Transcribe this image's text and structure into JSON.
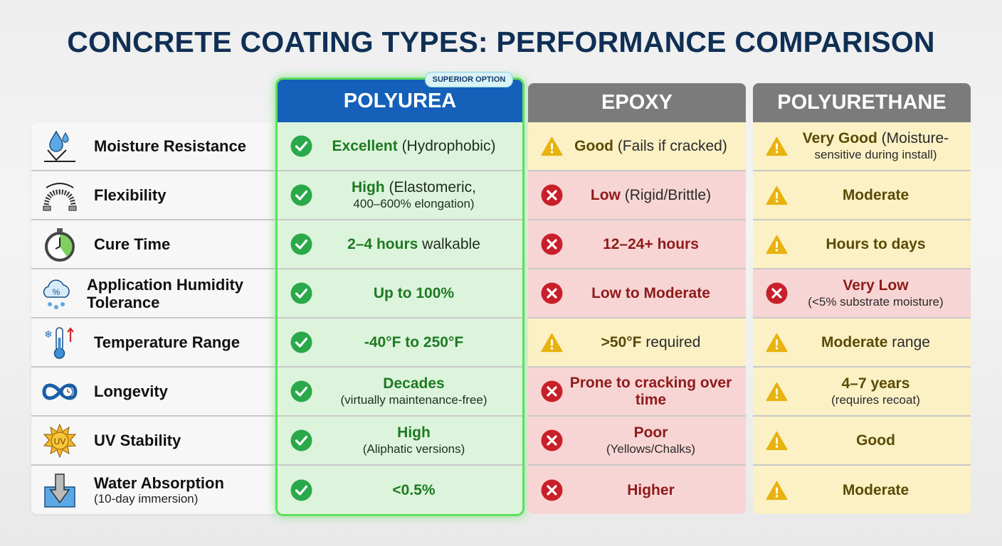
{
  "title": "CONCRETE COATING TYPES: PERFORMANCE COMPARISON",
  "badge": "SUPERIOR OPTION",
  "colors": {
    "polyurea_header": "#1560b8",
    "other_header": "#7b7b7b",
    "good": "#2aa84a",
    "warn": "#e8b20f",
    "bad": "#c8202a"
  },
  "criteria": [
    {
      "label": "Moisture Resistance",
      "sub": "",
      "icon": "water-drop-icon"
    },
    {
      "label": "Flexibility",
      "sub": "",
      "icon": "spring-flex-icon"
    },
    {
      "label": "Cure Time",
      "sub": "",
      "icon": "stopwatch-icon"
    },
    {
      "label": "Application Humidity Tolerance",
      "sub": "",
      "icon": "humidity-cloud-icon"
    },
    {
      "label": "Temperature Range",
      "sub": "",
      "icon": "thermometer-icon"
    },
    {
      "label": "Longevity",
      "sub": "",
      "icon": "infinity-clock-icon"
    },
    {
      "label": "UV Stability",
      "sub": "",
      "icon": "uv-sun-icon"
    },
    {
      "label": "Water Absorption",
      "sub": "(10-day immersion)",
      "icon": "water-immersion-icon"
    }
  ],
  "columns": [
    {
      "name": "POLYUREA",
      "cells": [
        {
          "status": "good",
          "bold": "Excellent",
          "rest": " (Hydrophobic)",
          "sub": ""
        },
        {
          "status": "good",
          "bold": "High",
          "rest": " (Elastomeric,",
          "sub": "400–600% elongation)"
        },
        {
          "status": "good",
          "bold": "2–4 hours",
          "rest": " walkable",
          "sub": ""
        },
        {
          "status": "good",
          "bold": "Up to 100%",
          "rest": "",
          "sub": ""
        },
        {
          "status": "good",
          "bold": "-40°F to 250°F",
          "rest": "",
          "sub": ""
        },
        {
          "status": "good",
          "bold": "Decades",
          "rest": "",
          "sub": "(virtually maintenance-free)"
        },
        {
          "status": "good",
          "bold": "High",
          "rest": "",
          "sub": "(Aliphatic versions)"
        },
        {
          "status": "good",
          "bold": "<0.5%",
          "rest": "",
          "sub": ""
        }
      ]
    },
    {
      "name": "EPOXY",
      "cells": [
        {
          "status": "warn",
          "bold": "Good",
          "rest": " (Fails if cracked)",
          "sub": ""
        },
        {
          "status": "bad",
          "bold": "Low",
          "rest": " (Rigid/Brittle)",
          "sub": ""
        },
        {
          "status": "bad",
          "bold": "12–24+ hours",
          "rest": "",
          "sub": ""
        },
        {
          "status": "bad",
          "bold": "Low to Moderate",
          "rest": "",
          "sub": ""
        },
        {
          "status": "warn",
          "bold": ">50°F",
          "rest": " required",
          "sub": ""
        },
        {
          "status": "bad",
          "bold": "Prone to cracking over time",
          "rest": "",
          "sub": ""
        },
        {
          "status": "bad",
          "bold": "Poor",
          "rest": "",
          "sub": "(Yellows/Chalks)"
        },
        {
          "status": "bad",
          "bold": "Higher",
          "rest": "",
          "sub": ""
        }
      ]
    },
    {
      "name": "POLYURETHANE",
      "cells": [
        {
          "status": "warn",
          "bold": "Very Good",
          "rest": " (Moisture-",
          "sub": "sensitive during install)"
        },
        {
          "status": "warn",
          "bold": "Moderate",
          "rest": "",
          "sub": ""
        },
        {
          "status": "warn",
          "bold": "Hours to days",
          "rest": "",
          "sub": ""
        },
        {
          "status": "bad",
          "bold": "Very Low",
          "rest": "",
          "sub": "(<5% substrate moisture)"
        },
        {
          "status": "warn",
          "bold": "Moderate",
          "rest": " range",
          "sub": ""
        },
        {
          "status": "warn",
          "bold": "4–7 years",
          "rest": "",
          "sub": "(requires recoat)"
        },
        {
          "status": "warn",
          "bold": "Good",
          "rest": "",
          "sub": ""
        },
        {
          "status": "warn",
          "bold": "Moderate",
          "rest": "",
          "sub": ""
        }
      ]
    }
  ]
}
